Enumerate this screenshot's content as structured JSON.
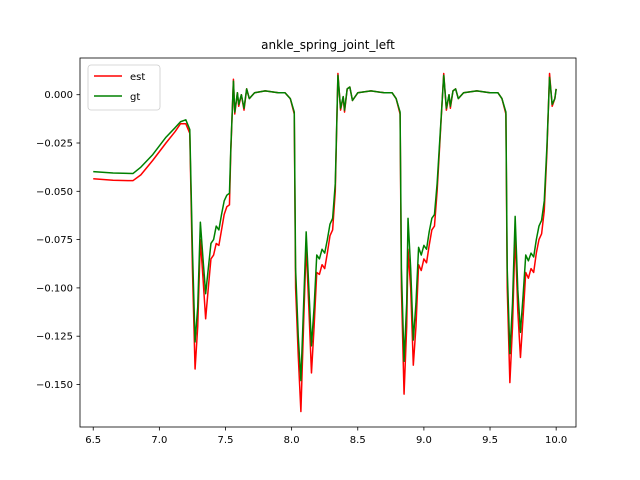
{
  "chart_data": {
    "type": "line",
    "title": "ankle_spring_joint_left",
    "xlabel": "",
    "ylabel": "",
    "xlim": [
      6.4,
      10.15
    ],
    "ylim": [
      -0.172,
      0.019
    ],
    "xticks": [
      6.5,
      7.0,
      7.5,
      8.0,
      8.5,
      9.0,
      9.5,
      10.0
    ],
    "xtick_labels": [
      "6.5",
      "7.0",
      "7.5",
      "8.0",
      "8.5",
      "9.0",
      "9.5",
      "10.0"
    ],
    "yticks": [
      0.0,
      -0.025,
      -0.05,
      -0.075,
      -0.1,
      -0.125,
      -0.15
    ],
    "ytick_labels": [
      "0.000",
      "−0.025",
      "−0.050",
      "−0.075",
      "−0.100",
      "−0.125",
      "−0.150"
    ],
    "grid": false,
    "legend": "top-left",
    "series": [
      {
        "name": "est",
        "color": "#ff0000",
        "points": [
          [
            6.5,
            -0.0435
          ],
          [
            6.65,
            -0.0443
          ],
          [
            6.8,
            -0.0445
          ],
          [
            6.86,
            -0.0415
          ],
          [
            6.95,
            -0.034
          ],
          [
            7.05,
            -0.025
          ],
          [
            7.12,
            -0.019
          ],
          [
            7.16,
            -0.015
          ],
          [
            7.2,
            -0.015
          ],
          [
            7.23,
            -0.02
          ],
          [
            7.25,
            -0.09
          ],
          [
            7.27,
            -0.142
          ],
          [
            7.29,
            -0.12
          ],
          [
            7.31,
            -0.075
          ],
          [
            7.33,
            -0.095
          ],
          [
            7.35,
            -0.116
          ],
          [
            7.37,
            -0.1
          ],
          [
            7.39,
            -0.085
          ],
          [
            7.41,
            -0.083
          ],
          [
            7.43,
            -0.077
          ],
          [
            7.45,
            -0.078
          ],
          [
            7.47,
            -0.07
          ],
          [
            7.49,
            -0.062
          ],
          [
            7.51,
            -0.058
          ],
          [
            7.53,
            -0.057
          ],
          [
            7.54,
            -0.03
          ],
          [
            7.56,
            0.008
          ],
          [
            7.57,
            -0.01
          ],
          [
            7.59,
            0.001
          ],
          [
            7.6,
            -0.006
          ],
          [
            7.62,
            0.0
          ],
          [
            7.64,
            -0.008
          ],
          [
            7.66,
            0.003
          ],
          [
            7.68,
            -0.002
          ],
          [
            7.72,
            0.001
          ],
          [
            7.8,
            0.002
          ],
          [
            7.9,
            0.001
          ],
          [
            7.95,
            0.001
          ],
          [
            7.99,
            -0.002
          ],
          [
            8.02,
            -0.01
          ],
          [
            8.03,
            -0.1
          ],
          [
            8.05,
            -0.135
          ],
          [
            8.07,
            -0.164
          ],
          [
            8.09,
            -0.12
          ],
          [
            8.11,
            -0.078
          ],
          [
            8.13,
            -0.11
          ],
          [
            8.15,
            -0.144
          ],
          [
            8.17,
            -0.12
          ],
          [
            8.19,
            -0.092
          ],
          [
            8.21,
            -0.093
          ],
          [
            8.23,
            -0.088
          ],
          [
            8.25,
            -0.09
          ],
          [
            8.27,
            -0.082
          ],
          [
            8.29,
            -0.073
          ],
          [
            8.31,
            -0.07
          ],
          [
            8.33,
            -0.05
          ],
          [
            8.35,
            0.011
          ],
          [
            8.37,
            -0.008
          ],
          [
            8.39,
            -0.001
          ],
          [
            8.4,
            -0.009
          ],
          [
            8.42,
            0.003
          ],
          [
            8.44,
            0.004
          ],
          [
            8.46,
            -0.003
          ],
          [
            8.5,
            0.001
          ],
          [
            8.6,
            0.002
          ],
          [
            8.7,
            0.001
          ],
          [
            8.76,
            0.001
          ],
          [
            8.79,
            -0.002
          ],
          [
            8.82,
            -0.01
          ],
          [
            8.83,
            -0.1
          ],
          [
            8.85,
            -0.155
          ],
          [
            8.87,
            -0.12
          ],
          [
            8.88,
            -0.08
          ],
          [
            8.9,
            -0.1
          ],
          [
            8.92,
            -0.14
          ],
          [
            8.94,
            -0.12
          ],
          [
            8.96,
            -0.088
          ],
          [
            8.98,
            -0.091
          ],
          [
            9.0,
            -0.085
          ],
          [
            9.02,
            -0.087
          ],
          [
            9.04,
            -0.078
          ],
          [
            9.06,
            -0.07
          ],
          [
            9.08,
            -0.068
          ],
          [
            9.1,
            -0.05
          ],
          [
            9.15,
            0.011
          ],
          [
            9.17,
            -0.008
          ],
          [
            9.19,
            0.0
          ],
          [
            9.2,
            -0.007
          ],
          [
            9.22,
            0.002
          ],
          [
            9.24,
            0.003
          ],
          [
            9.26,
            -0.002
          ],
          [
            9.3,
            0.001
          ],
          [
            9.4,
            0.002
          ],
          [
            9.5,
            0.001
          ],
          [
            9.56,
            0.001
          ],
          [
            9.59,
            -0.002
          ],
          [
            9.62,
            -0.01
          ],
          [
            9.63,
            -0.1
          ],
          [
            9.65,
            -0.149
          ],
          [
            9.67,
            -0.12
          ],
          [
            9.69,
            -0.072
          ],
          [
            9.71,
            -0.112
          ],
          [
            9.73,
            -0.136
          ],
          [
            9.75,
            -0.115
          ],
          [
            9.77,
            -0.092
          ],
          [
            9.79,
            -0.095
          ],
          [
            9.81,
            -0.09
          ],
          [
            9.83,
            -0.092
          ],
          [
            9.85,
            -0.082
          ],
          [
            9.87,
            -0.075
          ],
          [
            9.89,
            -0.072
          ],
          [
            9.91,
            -0.06
          ],
          [
            9.93,
            -0.03
          ],
          [
            9.95,
            0.011
          ],
          [
            9.97,
            -0.006
          ],
          [
            9.99,
            -0.002
          ],
          [
            10.0,
            0.003
          ]
        ]
      },
      {
        "name": "gt",
        "color": "#008000",
        "points": [
          [
            6.5,
            -0.0398
          ],
          [
            6.65,
            -0.0405
          ],
          [
            6.8,
            -0.0408
          ],
          [
            6.86,
            -0.0375
          ],
          [
            6.95,
            -0.031
          ],
          [
            7.05,
            -0.022
          ],
          [
            7.12,
            -0.017
          ],
          [
            7.16,
            -0.014
          ],
          [
            7.2,
            -0.013
          ],
          [
            7.23,
            -0.018
          ],
          [
            7.25,
            -0.08
          ],
          [
            7.27,
            -0.128
          ],
          [
            7.29,
            -0.11
          ],
          [
            7.31,
            -0.066
          ],
          [
            7.33,
            -0.085
          ],
          [
            7.35,
            -0.103
          ],
          [
            7.37,
            -0.09
          ],
          [
            7.39,
            -0.077
          ],
          [
            7.41,
            -0.075
          ],
          [
            7.43,
            -0.068
          ],
          [
            7.45,
            -0.07
          ],
          [
            7.47,
            -0.062
          ],
          [
            7.49,
            -0.055
          ],
          [
            7.51,
            -0.052
          ],
          [
            7.53,
            -0.051
          ],
          [
            7.54,
            -0.028
          ],
          [
            7.56,
            0.007
          ],
          [
            7.57,
            -0.009
          ],
          [
            7.59,
            0.001
          ],
          [
            7.6,
            -0.005
          ],
          [
            7.62,
            0.0
          ],
          [
            7.64,
            -0.007
          ],
          [
            7.66,
            0.003
          ],
          [
            7.68,
            -0.002
          ],
          [
            7.72,
            0.001
          ],
          [
            7.8,
            0.002
          ],
          [
            7.9,
            0.001
          ],
          [
            7.95,
            0.001
          ],
          [
            7.99,
            -0.002
          ],
          [
            8.02,
            -0.009
          ],
          [
            8.03,
            -0.09
          ],
          [
            8.05,
            -0.125
          ],
          [
            8.07,
            -0.148
          ],
          [
            8.09,
            -0.11
          ],
          [
            8.11,
            -0.071
          ],
          [
            8.13,
            -0.1
          ],
          [
            8.15,
            -0.13
          ],
          [
            8.17,
            -0.11
          ],
          [
            8.19,
            -0.083
          ],
          [
            8.21,
            -0.085
          ],
          [
            8.23,
            -0.08
          ],
          [
            8.25,
            -0.082
          ],
          [
            8.27,
            -0.075
          ],
          [
            8.29,
            -0.067
          ],
          [
            8.31,
            -0.064
          ],
          [
            8.33,
            -0.046
          ],
          [
            8.35,
            0.01
          ],
          [
            8.37,
            -0.007
          ],
          [
            8.39,
            -0.001
          ],
          [
            8.4,
            -0.008
          ],
          [
            8.42,
            0.003
          ],
          [
            8.44,
            0.004
          ],
          [
            8.46,
            -0.003
          ],
          [
            8.5,
            0.001
          ],
          [
            8.6,
            0.002
          ],
          [
            8.7,
            0.001
          ],
          [
            8.76,
            0.001
          ],
          [
            8.79,
            -0.002
          ],
          [
            8.82,
            -0.009
          ],
          [
            8.83,
            -0.09
          ],
          [
            8.85,
            -0.138
          ],
          [
            8.87,
            -0.108
          ],
          [
            8.88,
            -0.064
          ],
          [
            8.9,
            -0.09
          ],
          [
            8.92,
            -0.127
          ],
          [
            8.94,
            -0.108
          ],
          [
            8.96,
            -0.079
          ],
          [
            8.98,
            -0.083
          ],
          [
            9.0,
            -0.078
          ],
          [
            9.02,
            -0.08
          ],
          [
            9.04,
            -0.071
          ],
          [
            9.06,
            -0.064
          ],
          [
            9.08,
            -0.062
          ],
          [
            9.1,
            -0.046
          ],
          [
            9.15,
            0.01
          ],
          [
            9.17,
            -0.007
          ],
          [
            9.19,
            0.0
          ],
          [
            9.2,
            -0.006
          ],
          [
            9.22,
            0.002
          ],
          [
            9.24,
            0.003
          ],
          [
            9.26,
            -0.002
          ],
          [
            9.3,
            0.001
          ],
          [
            9.4,
            0.002
          ],
          [
            9.5,
            0.001
          ],
          [
            9.56,
            0.001
          ],
          [
            9.59,
            -0.002
          ],
          [
            9.62,
            -0.009
          ],
          [
            9.63,
            -0.09
          ],
          [
            9.65,
            -0.134
          ],
          [
            9.67,
            -0.108
          ],
          [
            9.69,
            -0.063
          ],
          [
            9.71,
            -0.101
          ],
          [
            9.73,
            -0.123
          ],
          [
            9.75,
            -0.104
          ],
          [
            9.77,
            -0.083
          ],
          [
            9.79,
            -0.086
          ],
          [
            9.81,
            -0.082
          ],
          [
            9.83,
            -0.084
          ],
          [
            9.85,
            -0.075
          ],
          [
            9.87,
            -0.068
          ],
          [
            9.89,
            -0.065
          ],
          [
            9.91,
            -0.055
          ],
          [
            9.93,
            -0.027
          ],
          [
            9.95,
            0.009
          ],
          [
            9.97,
            -0.005
          ],
          [
            9.99,
            -0.002
          ],
          [
            10.0,
            0.003
          ]
        ]
      }
    ]
  }
}
